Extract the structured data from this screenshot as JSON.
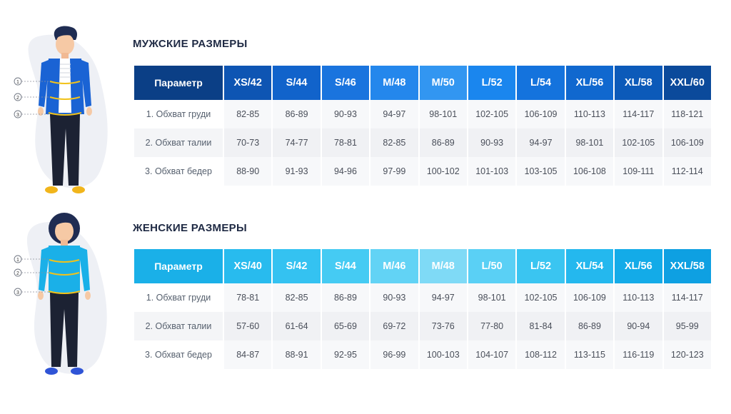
{
  "colors": {
    "men_header": [
      "#0b3f86",
      "#0e55b3",
      "#1163cb",
      "#1a74de",
      "#2487ec",
      "#3296f1",
      "#1a86ee",
      "#1473dd",
      "#1068cf",
      "#0c5ab9",
      "#0b4a9b"
    ],
    "women_header": [
      "#1ab0e8",
      "#28bbee",
      "#34c2f1",
      "#45cbf3",
      "#62d3f5",
      "#7fdaf6",
      "#5ad0f5",
      "#3ac5f1",
      "#24b8ee",
      "#13abe8",
      "#0ea0e2"
    ]
  },
  "men": {
    "title": "МУЖСКИЕ РАЗМЕРЫ",
    "headers": [
      "Параметр",
      "XS/42",
      "S/44",
      "S/46",
      "M/48",
      "M/50",
      "L/52",
      "L/54",
      "XL/56",
      "XL/58",
      "XXL/60"
    ],
    "rows": [
      {
        "label": "1. Обхват груди",
        "values": [
          "82-85",
          "86-89",
          "90-93",
          "94-97",
          "98-101",
          "102-105",
          "106-109",
          "110-113",
          "114-117",
          "118-121"
        ]
      },
      {
        "label": "2. Обхват талии",
        "values": [
          "70-73",
          "74-77",
          "78-81",
          "82-85",
          "86-89",
          "90-93",
          "94-97",
          "98-101",
          "102-105",
          "106-109"
        ]
      },
      {
        "label": "3. Обхват бедер",
        "values": [
          "88-90",
          "91-93",
          "94-96",
          "97-99",
          "100-102",
          "101-103",
          "103-105",
          "106-108",
          "109-111",
          "112-114"
        ]
      }
    ],
    "markers": [
      "1",
      "2",
      "3"
    ]
  },
  "women": {
    "title": "ЖЕНСКИЕ РАЗМЕРЫ",
    "headers": [
      "Параметр",
      "XS/40",
      "S/42",
      "S/44",
      "M/46",
      "M/48",
      "L/50",
      "L/52",
      "XL/54",
      "XL/56",
      "XXL/58"
    ],
    "rows": [
      {
        "label": "1. Обхват груди",
        "values": [
          "78-81",
          "82-85",
          "86-89",
          "90-93",
          "94-97",
          "98-101",
          "102-105",
          "106-109",
          "110-113",
          "114-117"
        ]
      },
      {
        "label": "2. Обхват талии",
        "values": [
          "57-60",
          "61-64",
          "65-69",
          "69-72",
          "73-76",
          "77-80",
          "81-84",
          "86-89",
          "90-94",
          "95-99"
        ]
      },
      {
        "label": "3. Обхват бедер",
        "values": [
          "84-87",
          "88-91",
          "92-95",
          "96-99",
          "100-103",
          "104-107",
          "108-112",
          "113-115",
          "116-119",
          "120-123"
        ]
      }
    ],
    "markers": [
      "1",
      "2",
      "3"
    ]
  }
}
